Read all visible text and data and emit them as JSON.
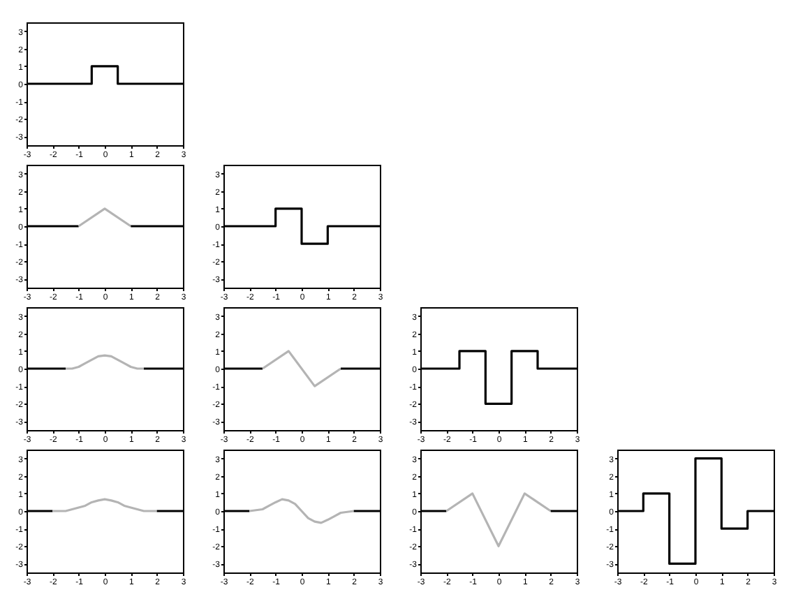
{
  "chart_data": [
    {
      "type": "step",
      "xlim": [
        -3,
        3
      ],
      "ylim": [
        -3.5,
        3.5
      ],
      "xticks": [
        -3,
        -2,
        -1,
        0,
        1,
        2,
        3
      ],
      "yticks": [
        -3,
        -2,
        -1,
        0,
        1,
        2,
        3
      ],
      "series": [
        {
          "color": "#000000",
          "x": [
            -3,
            -0.5,
            0.5,
            3
          ],
          "values": [
            0,
            1,
            0,
            0
          ]
        }
      ]
    },
    {
      "type": "line",
      "xlim": [
        -3,
        3
      ],
      "ylim": [
        -3.5,
        3.5
      ],
      "xticks": [
        -3,
        -2,
        -1,
        0,
        1,
        2,
        3
      ],
      "yticks": [
        -3,
        -2,
        -1,
        0,
        1,
        2,
        3
      ],
      "series": [
        {
          "color": "#000000",
          "x": [
            -3,
            -1
          ],
          "values": [
            0,
            0
          ]
        },
        {
          "color": "#b4b4b4",
          "x": [
            -1,
            0,
            1
          ],
          "values": [
            0,
            1,
            0
          ]
        },
        {
          "color": "#000000",
          "x": [
            1,
            3
          ],
          "values": [
            0,
            0
          ]
        }
      ]
    },
    {
      "type": "step",
      "xlim": [
        -3,
        3
      ],
      "ylim": [
        -3.5,
        3.5
      ],
      "xticks": [
        -3,
        -2,
        -1,
        0,
        1,
        2,
        3
      ],
      "yticks": [
        -3,
        -2,
        -1,
        0,
        1,
        2,
        3
      ],
      "series": [
        {
          "color": "#000000",
          "x": [
            -3,
            -1,
            0,
            1,
            3
          ],
          "values": [
            0,
            1,
            -1,
            0,
            0
          ]
        }
      ]
    },
    {
      "type": "line",
      "xlim": [
        -3,
        3
      ],
      "ylim": [
        -3.5,
        3.5
      ],
      "xticks": [
        -3,
        -2,
        -1,
        0,
        1,
        2,
        3
      ],
      "yticks": [
        -3,
        -2,
        -1,
        0,
        1,
        2,
        3
      ],
      "series": [
        {
          "color": "#000000",
          "x": [
            -3,
            -1.5
          ],
          "values": [
            0,
            0
          ]
        },
        {
          "color": "#b4b4b4",
          "x": [
            -1.5,
            -1.25,
            -1,
            -0.75,
            -0.5,
            -0.25,
            0,
            0.25,
            0.5,
            0.75,
            1,
            1.25,
            1.5
          ],
          "values": [
            0,
            0,
            0.1,
            0.3,
            0.5,
            0.7,
            0.75,
            0.7,
            0.5,
            0.3,
            0.1,
            0,
            0
          ]
        },
        {
          "color": "#000000",
          "x": [
            1.5,
            3
          ],
          "values": [
            0,
            0
          ]
        }
      ]
    },
    {
      "type": "line",
      "xlim": [
        -3,
        3
      ],
      "ylim": [
        -3.5,
        3.5
      ],
      "xticks": [
        -3,
        -2,
        -1,
        0,
        1,
        2,
        3
      ],
      "yticks": [
        -3,
        -2,
        -1,
        0,
        1,
        2,
        3
      ],
      "series": [
        {
          "color": "#000000",
          "x": [
            -3,
            -1.5
          ],
          "values": [
            0,
            0
          ]
        },
        {
          "color": "#b4b4b4",
          "x": [
            -1.5,
            -0.5,
            0.5,
            1.5
          ],
          "values": [
            0,
            1,
            -1,
            0
          ]
        },
        {
          "color": "#000000",
          "x": [
            1.5,
            3
          ],
          "values": [
            0,
            0
          ]
        }
      ]
    },
    {
      "type": "step",
      "xlim": [
        -3,
        3
      ],
      "ylim": [
        -3.5,
        3.5
      ],
      "xticks": [
        -3,
        -2,
        -1,
        0,
        1,
        2,
        3
      ],
      "yticks": [
        -3,
        -2,
        -1,
        0,
        1,
        2,
        3
      ],
      "series": [
        {
          "color": "#000000",
          "x": [
            -3,
            -1.5,
            -0.5,
            0.5,
            1.5,
            3
          ],
          "values": [
            0,
            1,
            -2,
            1,
            0,
            0
          ]
        }
      ]
    },
    {
      "type": "line",
      "xlim": [
        -3,
        3
      ],
      "ylim": [
        -3.5,
        3.5
      ],
      "xticks": [
        -3,
        -2,
        -1,
        0,
        1,
        2,
        3
      ],
      "yticks": [
        -3,
        -2,
        -1,
        0,
        1,
        2,
        3
      ],
      "series": [
        {
          "color": "#000000",
          "x": [
            -3,
            -2
          ],
          "values": [
            0,
            0
          ]
        },
        {
          "color": "#b4b4b4",
          "x": [
            -2,
            -1.5,
            -1.25,
            -1,
            -0.75,
            -0.5,
            -0.25,
            0,
            0.25,
            0.5,
            0.75,
            1,
            1.25,
            1.5,
            2
          ],
          "values": [
            0,
            0,
            0.1,
            0.2,
            0.3,
            0.5,
            0.6,
            0.67,
            0.6,
            0.5,
            0.3,
            0.2,
            0.1,
            0,
            0
          ]
        },
        {
          "color": "#000000",
          "x": [
            2,
            3
          ],
          "values": [
            0,
            0
          ]
        }
      ]
    },
    {
      "type": "line",
      "xlim": [
        -3,
        3
      ],
      "ylim": [
        -3.5,
        3.5
      ],
      "xticks": [
        -3,
        -2,
        -1,
        0,
        1,
        2,
        3
      ],
      "yticks": [
        -3,
        -2,
        -1,
        0,
        1,
        2,
        3
      ],
      "series": [
        {
          "color": "#000000",
          "x": [
            -3,
            -2
          ],
          "values": [
            0,
            0
          ]
        },
        {
          "color": "#b4b4b4",
          "x": [
            -2,
            -1.5,
            -1.25,
            -1,
            -0.75,
            -0.5,
            -0.25,
            0,
            0.25,
            0.5,
            0.75,
            1,
            1.25,
            1.5,
            2
          ],
          "values": [
            0,
            0.1,
            0.3,
            0.5,
            0.67,
            0.6,
            0.4,
            0,
            -0.4,
            -0.6,
            -0.67,
            -0.5,
            -0.3,
            -0.1,
            0
          ]
        },
        {
          "color": "#000000",
          "x": [
            2,
            3
          ],
          "values": [
            0,
            0
          ]
        }
      ]
    },
    {
      "type": "line",
      "xlim": [
        -3,
        3
      ],
      "ylim": [
        -3.5,
        3.5
      ],
      "xticks": [
        -3,
        -2,
        -1,
        0,
        1,
        2,
        3
      ],
      "yticks": [
        -3,
        -2,
        -1,
        0,
        1,
        2,
        3
      ],
      "series": [
        {
          "color": "#000000",
          "x": [
            -3,
            -2
          ],
          "values": [
            0,
            0
          ]
        },
        {
          "color": "#b4b4b4",
          "x": [
            -2,
            -1,
            0,
            1,
            2
          ],
          "values": [
            0,
            1,
            -2,
            1,
            0
          ]
        },
        {
          "color": "#000000",
          "x": [
            2,
            3
          ],
          "values": [
            0,
            0
          ]
        }
      ]
    },
    {
      "type": "step",
      "xlim": [
        -3,
        3
      ],
      "ylim": [
        -3.5,
        3.5
      ],
      "xticks": [
        -3,
        -2,
        -1,
        0,
        1,
        2,
        3
      ],
      "yticks": [
        -3,
        -2,
        -1,
        0,
        1,
        2,
        3
      ],
      "series": [
        {
          "color": "#000000",
          "x": [
            -3,
            -2,
            -1,
            0,
            1,
            2,
            3
          ],
          "values": [
            0,
            1,
            -3,
            3,
            -1,
            0,
            0
          ]
        }
      ]
    }
  ]
}
